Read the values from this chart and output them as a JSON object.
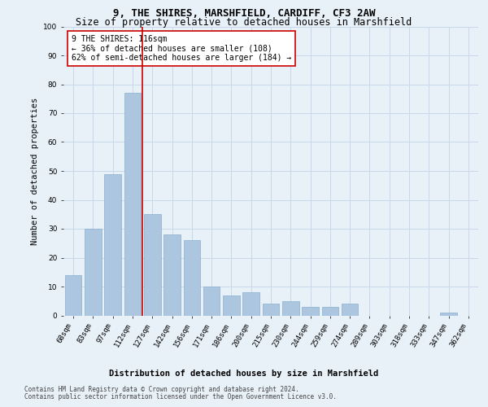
{
  "title": "9, THE SHIRES, MARSHFIELD, CARDIFF, CF3 2AW",
  "subtitle": "Size of property relative to detached houses in Marshfield",
  "xlabel": "Distribution of detached houses by size in Marshfield",
  "ylabel": "Number of detached properties",
  "categories": [
    "68sqm",
    "83sqm",
    "97sqm",
    "112sqm",
    "127sqm",
    "142sqm",
    "156sqm",
    "171sqm",
    "186sqm",
    "200sqm",
    "215sqm",
    "230sqm",
    "244sqm",
    "259sqm",
    "274sqm",
    "289sqm",
    "303sqm",
    "318sqm",
    "333sqm",
    "347sqm",
    "362sqm"
  ],
  "values": [
    14,
    30,
    49,
    77,
    35,
    28,
    26,
    10,
    7,
    8,
    4,
    5,
    3,
    3,
    4,
    0,
    0,
    0,
    0,
    1,
    0
  ],
  "bar_color": "#adc6e0",
  "bar_edge_color": "#8ab0d0",
  "vline_x_index": 3,
  "vline_color": "#cc0000",
  "annotation_text": "9 THE SHIRES: 116sqm\n← 36% of detached houses are smaller (108)\n62% of semi-detached houses are larger (184) →",
  "annotation_box_color": "#ffffff",
  "annotation_box_edge": "#cc0000",
  "ylim": [
    0,
    100
  ],
  "yticks": [
    0,
    10,
    20,
    30,
    40,
    50,
    60,
    70,
    80,
    90,
    100
  ],
  "grid_color": "#c8d8ea",
  "bg_color": "#e8f0f8",
  "footer_line1": "Contains HM Land Registry data © Crown copyright and database right 2024.",
  "footer_line2": "Contains public sector information licensed under the Open Government Licence v3.0.",
  "title_fontsize": 9,
  "subtitle_fontsize": 8.5,
  "tick_fontsize": 6.5,
  "ylabel_fontsize": 7.5,
  "xlabel_fontsize": 7.5,
  "annotation_fontsize": 7,
  "footer_fontsize": 5.5
}
